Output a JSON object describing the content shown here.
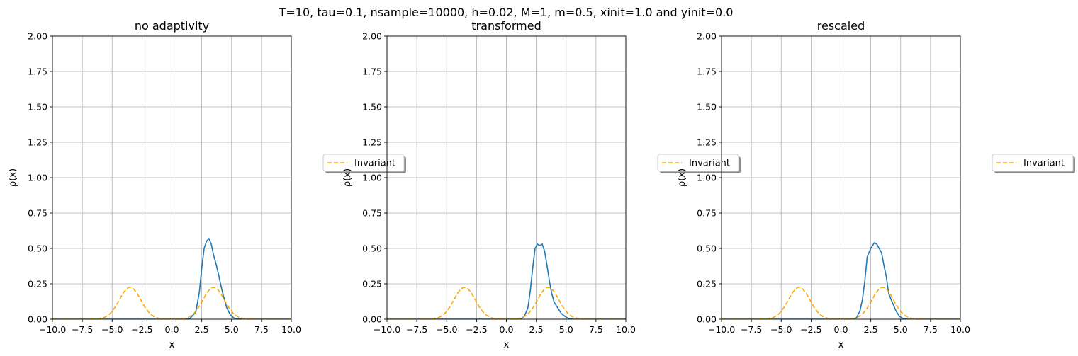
{
  "suptitle": "T=10, tau=0.1, nsample=10000, h=0.02, M=1, m=0.5, xinit=1.0 and yinit=0.0",
  "colors": {
    "histogram": "#1f77b4",
    "invariant": "#ffa500",
    "grid": "#b0b0b0"
  },
  "chart_data": [
    {
      "type": "line",
      "title": "no adaptivity",
      "xlabel": "x",
      "ylabel": "ρ(x)",
      "xlim": [
        -10,
        10
      ],
      "ylim": [
        0,
        2
      ],
      "xticks": [
        -10,
        -7.5,
        -5,
        -2.5,
        0,
        2.5,
        5,
        7.5,
        10
      ],
      "xtick_labels": [
        "−10.0",
        "−7.5",
        "−5.0",
        "−2.5",
        "0.0",
        "2.5",
        "5.0",
        "7.5",
        "10.0"
      ],
      "yticks": [
        0,
        0.25,
        0.5,
        0.75,
        1,
        1.25,
        1.5,
        1.75,
        2
      ],
      "ytick_labels": [
        "0.00",
        "0.25",
        "0.50",
        "0.75",
        "1.00",
        "1.25",
        "1.50",
        "1.75",
        "2.00"
      ],
      "grid": true,
      "legend": {
        "placement": "outside-right",
        "entries": [
          "Invariant"
        ],
        "visible_text": "Invariant"
      },
      "series": [
        {
          "style": "solid",
          "color": "#1f77b4",
          "x": [
            -10,
            1.0,
            1.5,
            2.0,
            2.3,
            2.5,
            2.7,
            2.9,
            3.1,
            3.3,
            3.5,
            3.7,
            3.9,
            4.1,
            4.3,
            4.6,
            4.9,
            5.2,
            5.6,
            6.0,
            10
          ],
          "y": [
            0,
            0,
            0.004,
            0.05,
            0.19,
            0.36,
            0.5,
            0.55,
            0.57,
            0.53,
            0.45,
            0.39,
            0.32,
            0.24,
            0.17,
            0.08,
            0.03,
            0.008,
            0.002,
            0,
            0
          ]
        },
        {
          "name": "Invariant",
          "style": "dashed",
          "color": "#ffa500",
          "model": "bimodal",
          "peaks": [
            -3.5,
            3.5
          ],
          "peak_height": 0.225,
          "width": 0.9
        }
      ]
    },
    {
      "type": "line",
      "title": "transformed",
      "xlabel": "x",
      "ylabel": "ρ(x)",
      "xlim": [
        -10,
        10
      ],
      "ylim": [
        0,
        2
      ],
      "xticks": [
        -10,
        -7.5,
        -5,
        -2.5,
        0,
        2.5,
        5,
        7.5,
        10
      ],
      "xtick_labels": [
        "−10.0",
        "−7.5",
        "−5.0",
        "−2.5",
        "0.0",
        "2.5",
        "5.0",
        "7.5",
        "10.0"
      ],
      "yticks": [
        0,
        0.25,
        0.5,
        0.75,
        1,
        1.25,
        1.5,
        1.75,
        2
      ],
      "ytick_labels": [
        "0.00",
        "0.25",
        "0.50",
        "0.75",
        "1.00",
        "1.25",
        "1.50",
        "1.75",
        "2.00"
      ],
      "grid": true,
      "legend": {
        "placement": "outside-right",
        "entries": [
          "Invariant"
        ],
        "visible_text": "Invariant"
      },
      "series": [
        {
          "style": "solid",
          "color": "#1f77b4",
          "x": [
            -10,
            1.2,
            1.5,
            1.8,
            2.0,
            2.2,
            2.4,
            2.6,
            2.8,
            3.0,
            3.2,
            3.4,
            3.6,
            3.8,
            4.0,
            4.3,
            4.6,
            4.9,
            5.2,
            5.6,
            10
          ],
          "y": [
            0,
            0,
            0.02,
            0.08,
            0.2,
            0.36,
            0.5,
            0.53,
            0.52,
            0.53,
            0.48,
            0.38,
            0.27,
            0.18,
            0.12,
            0.08,
            0.04,
            0.02,
            0.005,
            0,
            0
          ]
        },
        {
          "name": "Invariant",
          "style": "dashed",
          "color": "#ffa500",
          "model": "bimodal",
          "peaks": [
            -3.5,
            3.5
          ],
          "peak_height": 0.225,
          "width": 0.9
        }
      ]
    },
    {
      "type": "line",
      "title": "rescaled",
      "xlabel": "x",
      "ylabel": "ρ(x)",
      "xlim": [
        -10,
        10
      ],
      "ylim": [
        0,
        2
      ],
      "xticks": [
        -10,
        -7.5,
        -5,
        -2.5,
        0,
        2.5,
        5,
        7.5,
        10
      ],
      "xtick_labels": [
        "−10.0",
        "−7.5",
        "−5.0",
        "−2.5",
        "0.0",
        "2.5",
        "5.0",
        "7.5",
        "10.0"
      ],
      "yticks": [
        0,
        0.25,
        0.5,
        0.75,
        1,
        1.25,
        1.5,
        1.75,
        2
      ],
      "ytick_labels": [
        "0.00",
        "0.25",
        "0.50",
        "0.75",
        "1.00",
        "1.25",
        "1.50",
        "1.75",
        "2.00"
      ],
      "grid": true,
      "legend": {
        "placement": "outside-right",
        "entries": [
          "Invariant"
        ],
        "visible_text": "Invariant"
      },
      "series": [
        {
          "style": "solid",
          "color": "#1f77b4",
          "x": [
            -10,
            1.0,
            1.3,
            1.6,
            1.8,
            2.0,
            2.2,
            2.5,
            2.8,
            3.0,
            3.2,
            3.4,
            3.6,
            3.8,
            4.0,
            4.3,
            4.6,
            4.9,
            5.2,
            5.6,
            10
          ],
          "y": [
            0,
            0,
            0.01,
            0.06,
            0.14,
            0.27,
            0.44,
            0.5,
            0.54,
            0.53,
            0.5,
            0.47,
            0.38,
            0.3,
            0.18,
            0.12,
            0.06,
            0.02,
            0.005,
            0,
            0
          ]
        },
        {
          "name": "Invariant",
          "style": "dashed",
          "color": "#ffa500",
          "model": "bimodal",
          "peaks": [
            -3.5,
            3.5
          ],
          "peak_height": 0.225,
          "width": 0.9
        }
      ]
    }
  ]
}
